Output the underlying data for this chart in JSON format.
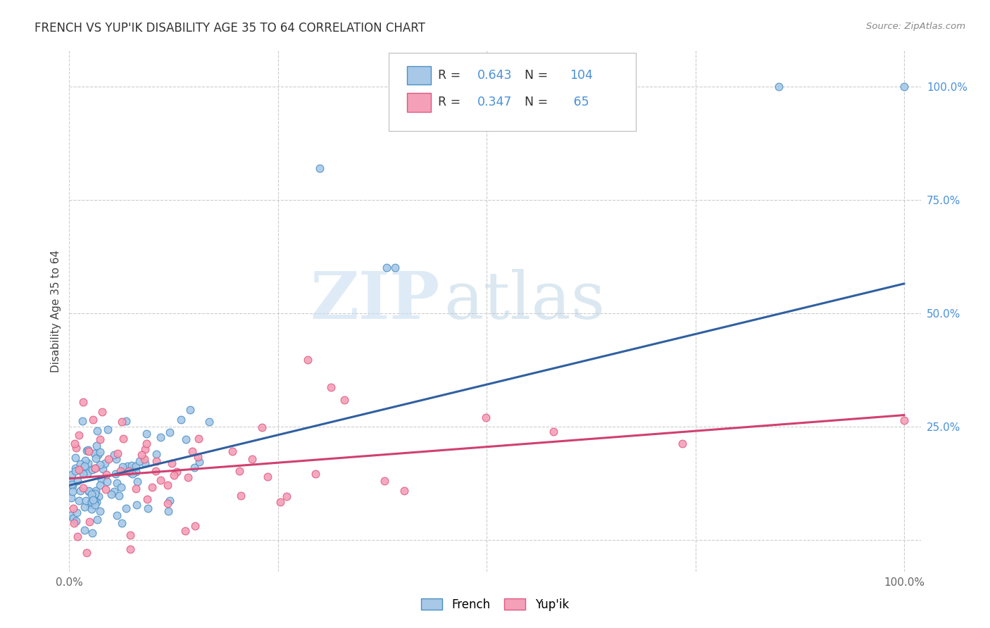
{
  "title": "FRENCH VS YUP'IK DISABILITY AGE 35 TO 64 CORRELATION CHART",
  "source": "Source: ZipAtlas.com",
  "ylabel": "Disability Age 35 to 64",
  "french_R": 0.643,
  "french_N": 104,
  "yupik_R": 0.347,
  "yupik_N": 65,
  "french_color": "#a8c8e8",
  "yupik_color": "#f4a0b8",
  "french_edge_color": "#4a90c4",
  "yupik_edge_color": "#e05880",
  "french_line_color": "#3060a0",
  "yupik_line_color": "#d04070",
  "legend_french_label": "French",
  "legend_yupik_label": "Yup'ik",
  "watermark_zip": "ZIP",
  "watermark_atlas": "atlas",
  "french_line_x0": 0.0,
  "french_line_y0": 0.12,
  "french_line_x1": 1.0,
  "french_line_y1": 0.565,
  "yupik_line_x0": 0.0,
  "yupik_line_y0": 0.135,
  "yupik_line_x1": 1.0,
  "yupik_line_y1": 0.275,
  "xlim": [
    0.0,
    1.02
  ],
  "ylim": [
    -0.07,
    1.08
  ],
  "x_tick_positions": [
    0.0,
    0.25,
    0.5,
    0.75,
    1.0
  ],
  "x_tick_labels": [
    "0.0%",
    "",
    "",
    "",
    "100.0%"
  ],
  "y_tick_positions": [
    0.0,
    0.25,
    0.5,
    0.75,
    1.0
  ],
  "y_tick_labels_right": [
    "",
    "25.0%",
    "50.0%",
    "75.0%",
    "100.0%"
  ],
  "grid_color": "#cccccc",
  "title_fontsize": 12,
  "tick_fontsize": 11,
  "ylabel_fontsize": 11,
  "scatter_size": 60,
  "scatter_linewidth": 0.8,
  "scatter_alpha": 0.9
}
